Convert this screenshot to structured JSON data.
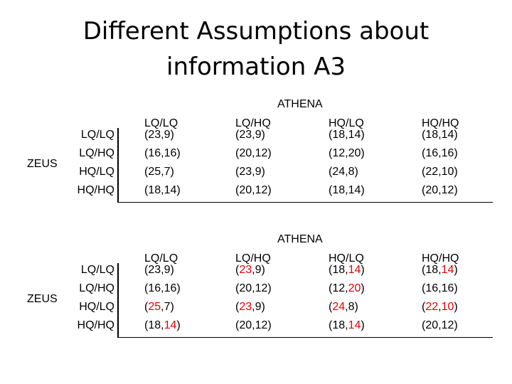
{
  "title": {
    "line1": "Different Assumptions about",
    "line2": "information A3"
  },
  "highlight_color": "#e00000",
  "tables": [
    {
      "column_group": "ATHENA",
      "row_group": "ZEUS",
      "columns": [
        "LQ/LQ",
        "LQ/HQ",
        "HQ/LQ",
        "HQ/HQ"
      ],
      "rows": [
        "LQ/LQ",
        "LQ/HQ",
        "HQ/LQ",
        "HQ/HQ"
      ],
      "cells": [
        [
          {
            "parts": [
              "(",
              "23",
              ",",
              "9",
              ")"
            ]
          },
          {
            "parts": [
              "(",
              "23",
              ",",
              "9",
              ")"
            ]
          },
          {
            "parts": [
              "(",
              "18",
              ",",
              "14",
              ")"
            ]
          },
          {
            "parts": [
              "(",
              "18",
              ",",
              "14",
              ")"
            ]
          }
        ],
        [
          {
            "parts": [
              "(",
              "16",
              ",",
              "16",
              ")"
            ]
          },
          {
            "parts": [
              "(",
              "20",
              ",",
              "12",
              ")"
            ]
          },
          {
            "parts": [
              "(",
              "12",
              ",",
              "20",
              ")"
            ]
          },
          {
            "parts": [
              "(",
              "16",
              ",",
              "16",
              ")"
            ]
          }
        ],
        [
          {
            "parts": [
              "(",
              "25",
              ",",
              "7",
              ")"
            ]
          },
          {
            "parts": [
              "(",
              "23",
              ",",
              "9",
              ")"
            ]
          },
          {
            "parts": [
              "(",
              "24",
              ",",
              "8",
              ")"
            ]
          },
          {
            "parts": [
              "(",
              "22",
              ",",
              "10",
              ")"
            ]
          }
        ],
        [
          {
            "parts": [
              "(",
              "18",
              ",",
              "14",
              ")"
            ]
          },
          {
            "parts": [
              "(",
              "20",
              ",",
              "12",
              ")"
            ]
          },
          {
            "parts": [
              "(",
              "18",
              ",",
              "14",
              ")"
            ]
          },
          {
            "parts": [
              "(",
              "20",
              ",",
              "12",
              ")"
            ]
          }
        ]
      ]
    },
    {
      "column_group": "ATHENA",
      "row_group": "ZEUS",
      "columns": [
        "LQ/LQ",
        "LQ/HQ",
        "HQ/LQ",
        "HQ/HQ"
      ],
      "rows": [
        "LQ/LQ",
        "LQ/HQ",
        "HQ/LQ",
        "HQ/HQ"
      ],
      "cells": [
        [
          {
            "parts": [
              "(",
              "23",
              ",",
              "9",
              ")"
            ]
          },
          {
            "parts": [
              "(",
              "23",
              ",",
              "9",
              ")"
            ],
            "red": [
              1
            ]
          },
          {
            "parts": [
              "(",
              "18",
              ",",
              "14",
              ")"
            ],
            "red": [
              3
            ]
          },
          {
            "parts": [
              "(",
              "18",
              ",",
              "14",
              ")"
            ],
            "red": [
              3
            ]
          }
        ],
        [
          {
            "parts": [
              "(",
              "16",
              ",",
              "16",
              ")"
            ]
          },
          {
            "parts": [
              "(",
              "20",
              ",",
              "12",
              ")"
            ]
          },
          {
            "parts": [
              "(",
              "12",
              ",",
              "20",
              ")"
            ],
            "red": [
              3
            ]
          },
          {
            "parts": [
              "(",
              "16",
              ",",
              "16",
              ")"
            ]
          }
        ],
        [
          {
            "parts": [
              "(",
              "25",
              ",",
              "7",
              ")"
            ],
            "red": [
              1
            ]
          },
          {
            "parts": [
              "(",
              "23",
              ",",
              "9",
              ")"
            ],
            "red": [
              1
            ]
          },
          {
            "parts": [
              "(",
              "24",
              ",",
              "8",
              ")"
            ],
            "red": [
              1
            ]
          },
          {
            "parts": [
              "(",
              "22",
              ",",
              "10",
              ")"
            ],
            "red": [
              1,
              3
            ]
          }
        ],
        [
          {
            "parts": [
              "(",
              "18",
              ",",
              "14",
              ")"
            ],
            "red": [
              3
            ]
          },
          {
            "parts": [
              "(",
              "20",
              ",",
              "12",
              ")"
            ]
          },
          {
            "parts": [
              "(",
              "18",
              ",",
              "14",
              ")"
            ],
            "red": [
              3
            ]
          },
          {
            "parts": [
              "(",
              "20",
              ",",
              "12",
              ")"
            ]
          }
        ]
      ]
    }
  ]
}
